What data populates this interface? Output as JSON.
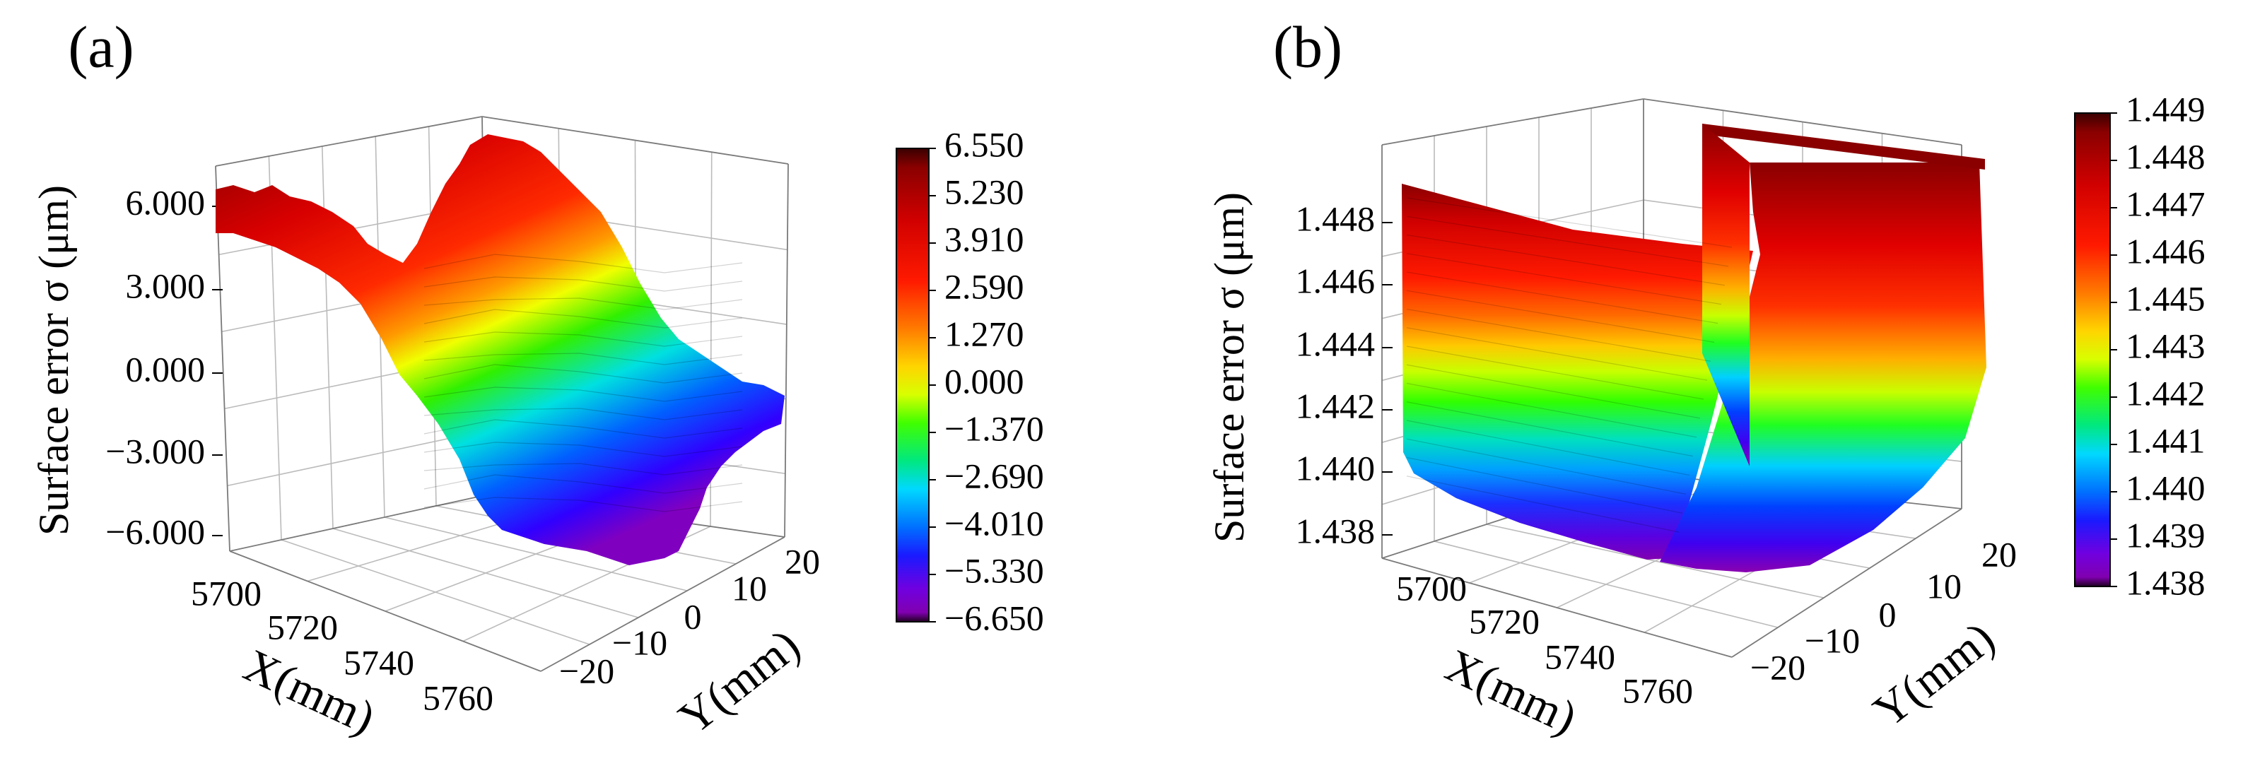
{
  "panels": [
    {
      "label": "(a)",
      "chart_data": {
        "type": "surface3d",
        "title": "",
        "xlabel": "X(mm)",
        "ylabel": "Y(mm)",
        "zlabel": "Surface error σ (μm)",
        "x_ticks": [
          "5700",
          "5720",
          "5740",
          "5760"
        ],
        "y_ticks": [
          "−20",
          "−10",
          "0",
          "10",
          "20"
        ],
        "z_ticks": [
          "−6.000",
          "−3.000",
          "0.000",
          "3.000",
          "6.000"
        ],
        "xlim": [
          5690,
          5770
        ],
        "ylim": [
          -25,
          25
        ],
        "zlim": [
          -6.65,
          6.55
        ],
        "description_values": {
          "z_max": 6.55,
          "z_min": -6.65
        },
        "colorbar": {
          "ticks": [
            "6.550",
            "5.230",
            "3.910",
            "2.590",
            "1.270",
            "0.000",
            "−1.370",
            "−2.690",
            "−4.010",
            "−5.330",
            "−6.650"
          ],
          "range": [
            -6.65,
            6.55
          ]
        }
      }
    },
    {
      "label": "(b)",
      "chart_data": {
        "type": "surface3d",
        "title": "",
        "xlabel": "X(mm)",
        "ylabel": "Y(mm)",
        "zlabel": "Surface error σ (μm)",
        "x_ticks": [
          "5700",
          "5720",
          "5740",
          "5760"
        ],
        "y_ticks": [
          "−20",
          "−10",
          "0",
          "10",
          "20"
        ],
        "z_ticks": [
          "1.438",
          "1.440",
          "1.442",
          "1.444",
          "1.446",
          "1.448"
        ],
        "xlim": [
          5690,
          5770
        ],
        "ylim": [
          -25,
          25
        ],
        "zlim": [
          1.438,
          1.449
        ],
        "description_values": {
          "z_max": 1.449,
          "z_min": 1.438
        },
        "colorbar": {
          "ticks": [
            "1.449",
            "1.448",
            "1.447",
            "1.446",
            "1.445",
            "1.443",
            "1.442",
            "1.441",
            "1.440",
            "1.439",
            "1.438"
          ],
          "range": [
            1.438,
            1.449
          ]
        }
      }
    }
  ],
  "colors": {
    "colormap": [
      "#5a0000",
      "#a00000",
      "#e60000",
      "#ff2000",
      "#ff7800",
      "#ffd000",
      "#e0ff00",
      "#40ff00",
      "#00e060",
      "#00e0ff",
      "#0080ff",
      "#2020ff",
      "#6000e0",
      "#8a00c0",
      "#3a0040"
    ]
  }
}
